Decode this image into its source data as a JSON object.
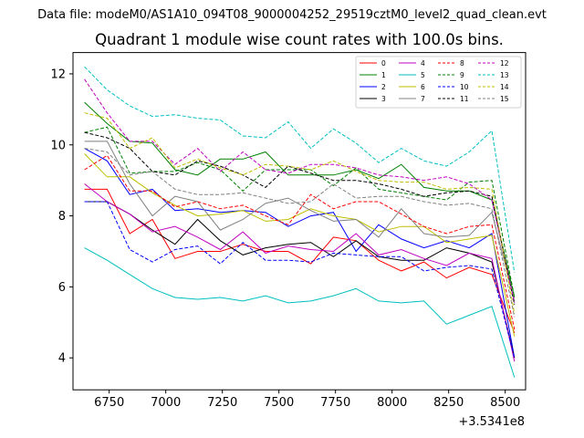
{
  "suptitle": "Data file: modeM0/AS1A10_094T08_9000004252_29519cztM0_level2_quad_clean.evt",
  "chart_data": {
    "type": "line",
    "title": "Quadrant 1 module wise count rates with 100.0s bins.",
    "xlabel": "",
    "ylabel": "",
    "x_offset_label": "+3.5341e8",
    "xlim": [
      6590,
      8590
    ],
    "ylim": [
      3.1,
      12.6
    ],
    "x_ticks": [
      6750,
      7000,
      7250,
      7500,
      7750,
      8000,
      8250,
      8500
    ],
    "y_ticks": [
      4,
      6,
      8,
      10,
      12
    ],
    "grid": false,
    "legend_position": "top-right",
    "x": [
      6641,
      6741,
      6841,
      6941,
      7041,
      7141,
      7241,
      7341,
      7441,
      7541,
      7641,
      7741,
      7841,
      7941,
      8041,
      8141,
      8241,
      8341,
      8441,
      8541
    ],
    "series": [
      {
        "name": "0",
        "color": "#ff0000",
        "dash": "solid",
        "values": [
          8.75,
          8.75,
          7.5,
          7.9,
          6.8,
          7.0,
          7.0,
          7.2,
          7.0,
          7.0,
          6.65,
          7.4,
          7.3,
          6.75,
          6.45,
          6.7,
          6.25,
          6.55,
          6.35,
          4.7
        ]
      },
      {
        "name": "1",
        "color": "#008000",
        "dash": "solid",
        "values": [
          11.2,
          10.6,
          10.1,
          10.05,
          9.3,
          9.15,
          9.6,
          9.6,
          9.8,
          9.15,
          9.15,
          9.15,
          9.3,
          9.05,
          9.45,
          8.8,
          8.7,
          8.7,
          8.45,
          5.7
        ]
      },
      {
        "name": "2",
        "color": "#0000ff",
        "dash": "solid",
        "values": [
          9.9,
          9.55,
          8.6,
          8.75,
          8.15,
          8.2,
          8.1,
          8.15,
          8.1,
          7.7,
          8.0,
          8.1,
          7.0,
          7.75,
          7.35,
          7.1,
          7.3,
          7.1,
          7.5,
          4.0
        ]
      },
      {
        "name": "3",
        "color": "#000000",
        "dash": "solid",
        "values": [
          8.4,
          8.4,
          8.05,
          7.6,
          7.2,
          7.9,
          7.3,
          6.9,
          7.1,
          7.2,
          7.25,
          6.85,
          7.3,
          6.85,
          6.75,
          6.75,
          7.1,
          6.95,
          6.7,
          4.0
        ]
      },
      {
        "name": "4",
        "color": "#c000c0",
        "dash": "solid",
        "values": [
          8.9,
          8.4,
          8.05,
          7.55,
          7.7,
          7.4,
          7.05,
          7.55,
          6.95,
          7.15,
          7.05,
          7.0,
          7.5,
          6.9,
          7.05,
          6.8,
          6.6,
          6.95,
          6.8,
          3.9
        ]
      },
      {
        "name": "5",
        "color": "#00bfbf",
        "dash": "solid",
        "values": [
          7.1,
          6.75,
          6.35,
          5.95,
          5.7,
          5.65,
          5.7,
          5.6,
          5.75,
          5.55,
          5.6,
          5.75,
          5.95,
          5.6,
          5.55,
          5.6,
          4.95,
          5.2,
          5.45,
          3.45
        ]
      },
      {
        "name": "6",
        "color": "#bfbf00",
        "dash": "solid",
        "values": [
          9.75,
          9.1,
          9.1,
          8.65,
          8.3,
          8.0,
          8.05,
          8.15,
          7.85,
          7.9,
          8.2,
          8.0,
          7.9,
          7.55,
          7.7,
          7.7,
          7.25,
          7.35,
          7.45,
          4.6
        ]
      },
      {
        "name": "7",
        "color": "#808080",
        "dash": "solid",
        "values": [
          10.1,
          10.1,
          8.9,
          8.0,
          8.55,
          8.4,
          7.6,
          7.9,
          8.35,
          8.5,
          8.15,
          7.85,
          7.9,
          7.4,
          8.2,
          7.5,
          7.4,
          7.45,
          8.1,
          5.6
        ]
      },
      {
        "name": "8",
        "color": "#ff0000",
        "dash": "dashed",
        "values": [
          9.3,
          9.7,
          8.7,
          8.7,
          8.25,
          8.4,
          8.2,
          8.3,
          8.0,
          7.75,
          8.6,
          8.2,
          8.4,
          8.4,
          8.05,
          7.7,
          7.5,
          7.7,
          7.75,
          4.8
        ]
      },
      {
        "name": "9",
        "color": "#008000",
        "dash": "dashed",
        "values": [
          10.35,
          10.5,
          9.2,
          9.25,
          9.25,
          9.5,
          9.3,
          8.7,
          9.3,
          9.3,
          9.3,
          8.85,
          9.35,
          8.75,
          8.65,
          8.55,
          8.45,
          8.95,
          9.0,
          5.7
        ]
      },
      {
        "name": "10",
        "color": "#0000ff",
        "dash": "dashed",
        "values": [
          8.4,
          8.4,
          7.05,
          6.7,
          7.05,
          7.15,
          6.65,
          7.25,
          6.75,
          6.75,
          6.7,
          6.95,
          6.9,
          6.85,
          6.85,
          6.45,
          6.55,
          6.6,
          6.5,
          4.0
        ]
      },
      {
        "name": "11",
        "color": "#000000",
        "dash": "dashed",
        "values": [
          10.35,
          10.2,
          9.9,
          9.25,
          9.15,
          9.55,
          9.4,
          9.15,
          8.8,
          9.4,
          9.2,
          9.0,
          9.0,
          8.9,
          8.75,
          8.55,
          8.65,
          8.7,
          8.55,
          5.5
        ]
      },
      {
        "name": "12",
        "color": "#c000c0",
        "dash": "dashed",
        "values": [
          11.85,
          10.9,
          10.1,
          10.1,
          9.45,
          9.9,
          9.25,
          9.8,
          9.3,
          9.2,
          9.45,
          9.45,
          9.35,
          9.15,
          9.1,
          9.0,
          9.1,
          8.9,
          8.45,
          5.55
        ]
      },
      {
        "name": "13",
        "color": "#00bfbf",
        "dash": "dashed",
        "values": [
          12.2,
          11.55,
          11.1,
          10.8,
          10.85,
          10.75,
          10.7,
          10.25,
          10.2,
          10.65,
          9.9,
          10.45,
          10.05,
          9.5,
          9.9,
          9.55,
          9.4,
          9.8,
          10.4,
          6.4
        ]
      },
      {
        "name": "14",
        "color": "#bfbf00",
        "dash": "dashed",
        "values": [
          10.9,
          10.75,
          9.9,
          10.2,
          9.35,
          9.6,
          9.35,
          9.15,
          9.45,
          9.4,
          9.3,
          9.55,
          9.25,
          9.0,
          8.95,
          8.95,
          8.75,
          8.8,
          8.75,
          5.25
        ]
      },
      {
        "name": "15",
        "color": "#808080",
        "dash": "dashed",
        "values": [
          9.9,
          9.8,
          9.15,
          9.25,
          8.75,
          8.6,
          8.6,
          8.65,
          8.5,
          8.35,
          8.4,
          8.9,
          8.5,
          8.55,
          8.55,
          8.4,
          8.3,
          8.35,
          8.2,
          5.15
        ]
      }
    ]
  }
}
